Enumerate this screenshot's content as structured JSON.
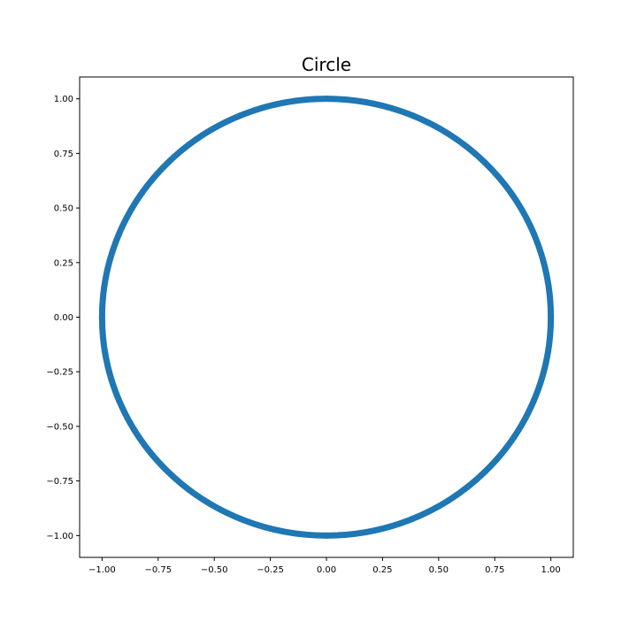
{
  "chart_data": {
    "type": "scatter",
    "title": "Circle",
    "xlabel": "",
    "ylabel": "",
    "xlim": [
      -1.1,
      1.1
    ],
    "ylim": [
      -1.1,
      1.1
    ],
    "grid": false,
    "legend": "none",
    "x_ticks": [
      -1.0,
      -0.75,
      -0.5,
      -0.25,
      0.0,
      0.25,
      0.5,
      0.75,
      1.0
    ],
    "y_ticks": [
      -1.0,
      -0.75,
      -0.5,
      -0.25,
      0.0,
      0.25,
      0.5,
      0.75,
      1.0
    ],
    "x_tick_labels": [
      "−1.00",
      "−0.75",
      "−0.50",
      "−0.25",
      "0.00",
      "0.25",
      "0.50",
      "0.75",
      "1.00"
    ],
    "y_tick_labels": [
      "−1.00",
      "−0.75",
      "−0.50",
      "−0.25",
      "0.00",
      "0.25",
      "0.50",
      "0.75",
      "1.00"
    ],
    "series": [
      {
        "color": "#1f77b4",
        "shape": "unit circle",
        "center": [
          0,
          0
        ],
        "radius": 1.0,
        "points": [
          [
            1.0,
            0.0
          ],
          [
            0.924,
            0.383
          ],
          [
            0.707,
            0.707
          ],
          [
            0.383,
            0.924
          ],
          [
            0.0,
            1.0
          ],
          [
            -0.383,
            0.924
          ],
          [
            -0.707,
            0.707
          ],
          [
            -0.924,
            0.383
          ],
          [
            -1.0,
            0.0
          ],
          [
            -0.924,
            -0.383
          ],
          [
            -0.707,
            -0.707
          ],
          [
            -0.383,
            -0.924
          ],
          [
            0.0,
            -1.0
          ],
          [
            0.383,
            -0.924
          ],
          [
            0.707,
            -0.707
          ],
          [
            0.924,
            -0.383
          ]
        ]
      }
    ]
  }
}
